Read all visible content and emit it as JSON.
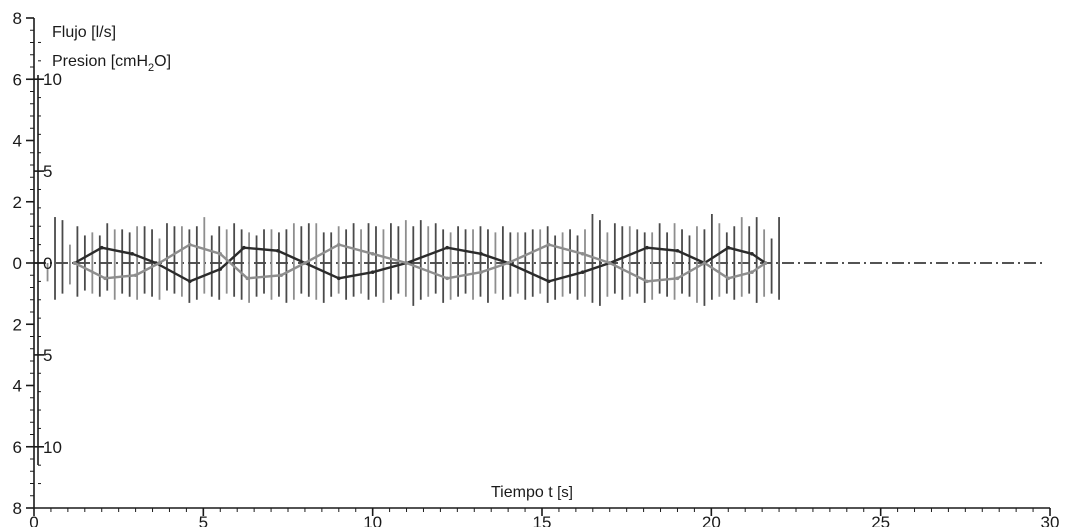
{
  "chart_data": {
    "type": "line",
    "legend_labels": [
      {
        "text": "Flujo [l/s]"
      },
      {
        "text": "Presion [cmH",
        "sub": "2",
        "after": "O]"
      }
    ],
    "xlabel": {
      "text": "Tiempo t ",
      "unit": "[s]"
    },
    "xlim": [
      0,
      30
    ],
    "x_ticks": [
      "0",
      "5",
      "10",
      "15",
      "20",
      "25",
      "30"
    ],
    "left_axis": {
      "ylim": [
        -8,
        8
      ],
      "tick_values": [
        8,
        6,
        4,
        2,
        0,
        -2,
        -4,
        -6,
        -8
      ],
      "tick_labels": [
        "8",
        "6",
        "4",
        "2",
        "0",
        "2",
        "4",
        "6",
        "8"
      ]
    },
    "inner_axis": {
      "ylim": [
        -13.33,
        13.33
      ],
      "tick_values": [
        10,
        5,
        0,
        -5,
        -10
      ],
      "tick_labels": [
        "10",
        "5",
        "0",
        "5",
        "10"
      ]
    },
    "series": [
      {
        "color": "#2b2b2b",
        "envelope": [
          [
            1.2,
            0.0
          ],
          [
            2.0,
            0.5
          ],
          [
            2.9,
            0.3
          ],
          [
            3.6,
            0.0
          ],
          [
            4.6,
            -0.6
          ],
          [
            5.5,
            -0.2
          ],
          [
            6.2,
            0.5
          ],
          [
            7.2,
            0.4
          ],
          [
            8.0,
            0.0
          ],
          [
            9.0,
            -0.5
          ],
          [
            10.0,
            -0.3
          ],
          [
            11.0,
            0.0
          ],
          [
            12.2,
            0.5
          ],
          [
            13.2,
            0.3
          ],
          [
            14.0,
            0.0
          ],
          [
            15.2,
            -0.6
          ],
          [
            16.2,
            -0.3
          ],
          [
            17.0,
            0.0
          ],
          [
            18.1,
            0.5
          ],
          [
            19.0,
            0.4
          ],
          [
            19.8,
            0.0
          ],
          [
            20.5,
            0.5
          ],
          [
            21.2,
            0.3
          ],
          [
            21.6,
            0.0
          ]
        ]
      },
      {
        "color": "#8e8e8e",
        "envelope": [
          [
            1.2,
            0.0
          ],
          [
            2.1,
            -0.5
          ],
          [
            3.0,
            -0.4
          ],
          [
            3.7,
            0.0
          ],
          [
            4.6,
            0.6
          ],
          [
            5.5,
            0.3
          ],
          [
            6.3,
            -0.5
          ],
          [
            7.3,
            -0.4
          ],
          [
            8.0,
            0.0
          ],
          [
            9.0,
            0.6
          ],
          [
            10.0,
            0.3
          ],
          [
            11.0,
            0.0
          ],
          [
            12.2,
            -0.5
          ],
          [
            13.2,
            -0.3
          ],
          [
            14.0,
            0.0
          ],
          [
            15.2,
            0.6
          ],
          [
            16.2,
            0.3
          ],
          [
            17.0,
            0.0
          ],
          [
            18.1,
            -0.6
          ],
          [
            19.0,
            -0.5
          ],
          [
            19.8,
            0.0
          ],
          [
            20.5,
            -0.5
          ],
          [
            21.2,
            -0.3
          ],
          [
            21.6,
            0.0
          ]
        ]
      }
    ],
    "oscillation_top": [
      0.0,
      1.5,
      1.4,
      0.6,
      1.2,
      0.9,
      1.0,
      0.9,
      1.3,
      1.1,
      1.1,
      1.0,
      1.2,
      1.2,
      1.1,
      0.8,
      1.3,
      1.2,
      1.2,
      1.1,
      1.2,
      1.5,
      0.9,
      1.2,
      1.1,
      1.3,
      1.1,
      1.0,
      0.9,
      1.1,
      1.1,
      1.0,
      1.1,
      1.3,
      1.2,
      1.3,
      1.3,
      1.0,
      1.0,
      1.2,
      1.1,
      1.3,
      1.1,
      1.3,
      1.2,
      1.1,
      1.3,
      1.2,
      1.4,
      1.2,
      1.4,
      1.2,
      1.3,
      1.1,
      1.0,
      1.2,
      1.1,
      1.1,
      1.2,
      1.1,
      1.0,
      1.2,
      1.0,
      1.0,
      1.0,
      1.1,
      1.1,
      1.2,
      0.9,
      1.0,
      1.1,
      0.9,
      1.1,
      1.6,
      1.4,
      1.0,
      1.3,
      1.2,
      1.2,
      1.1,
      1.0,
      1.0,
      1.3,
      1.0,
      1.3,
      1.1,
      0.9,
      1.2,
      1.1,
      1.6,
      1.3,
      1.0,
      1.2,
      1.5,
      1.2,
      1.5,
      1.1,
      0.8,
      1.5
    ],
    "oscillation_bottom": [
      -0.6,
      -1.2,
      -1.0,
      -0.7,
      -1.1,
      -0.9,
      -1.0,
      -1.1,
      -0.9,
      -1.2,
      -1.0,
      -1.1,
      -1.2,
      -1.0,
      -1.1,
      -1.2,
      -0.9,
      -1.0,
      -1.1,
      -1.3,
      -1.2,
      -1.0,
      -1.1,
      -1.2,
      -1.0,
      -1.1,
      -1.2,
      -1.3,
      -1.1,
      -1.0,
      -1.2,
      -1.1,
      -1.3,
      -1.2,
      -1.0,
      -1.1,
      -1.2,
      -1.3,
      -1.1,
      -1.0,
      -1.2,
      -1.1,
      -1.0,
      -1.2,
      -1.1,
      -1.3,
      -1.2,
      -1.0,
      -1.1,
      -1.4,
      -1.2,
      -1.1,
      -1.0,
      -1.3,
      -1.2,
      -1.1,
      -1.0,
      -1.2,
      -1.1,
      -1.3,
      -1.0,
      -1.2,
      -1.1,
      -1.0,
      -1.2,
      -1.1,
      -1.0,
      -1.3,
      -1.2,
      -1.1,
      -1.0,
      -1.2,
      -1.1,
      -1.3,
      -1.4,
      -1.1,
      -1.0,
      -1.2,
      -1.1,
      -1.0,
      -1.3,
      -1.2,
      -1.0,
      -1.1,
      -1.2,
      -1.0,
      -1.1,
      -1.3,
      -1.4,
      -1.2,
      -1.1,
      -1.0,
      -1.2,
      -1.1,
      -1.0,
      -1.3,
      -1.1,
      -1.0,
      -1.2
    ],
    "oscillation_range": [
      0.4,
      22.0
    ],
    "baseline": {
      "value": 0,
      "style": "dash-dot",
      "xlim": [
        0,
        30
      ]
    },
    "colors": {
      "axis": "#1a1a1a",
      "dark_series": "#2b2b2b",
      "light_series": "#8e8e8e",
      "oscillation": "#4a4a4a"
    },
    "grid": false
  }
}
